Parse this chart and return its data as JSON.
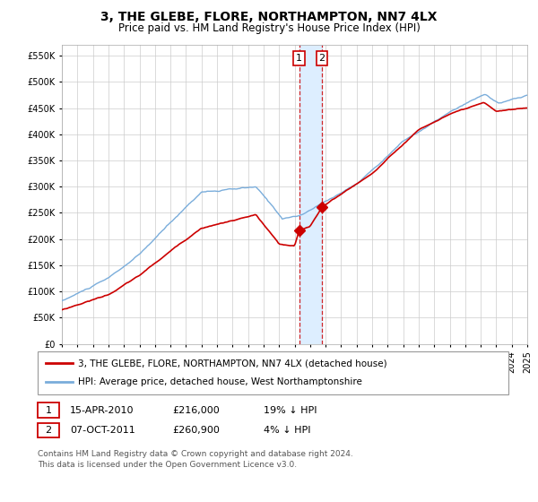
{
  "title": "3, THE GLEBE, FLORE, NORTHAMPTON, NN7 4LX",
  "subtitle": "Price paid vs. HM Land Registry's House Price Index (HPI)",
  "ylim": [
    0,
    570000
  ],
  "yticks": [
    0,
    50000,
    100000,
    150000,
    200000,
    250000,
    300000,
    350000,
    400000,
    450000,
    500000,
    550000
  ],
  "ytick_labels": [
    "£0",
    "£50K",
    "£100K",
    "£150K",
    "£200K",
    "£250K",
    "£300K",
    "£350K",
    "£400K",
    "£450K",
    "£500K",
    "£550K"
  ],
  "x_start_year": 1995,
  "x_end_year": 2025,
  "sale1_date": 2010.29,
  "sale1_price": 216000,
  "sale2_date": 2011.77,
  "sale2_price": 260900,
  "legend_red_label": "3, THE GLEBE, FLORE, NORTHAMPTON, NN7 4LX (detached house)",
  "legend_blue_label": "HPI: Average price, detached house, West Northamptonshire",
  "row1_num": "1",
  "row1_date": "15-APR-2010",
  "row1_price": "£216,000",
  "row1_hpi": "19% ↓ HPI",
  "row2_num": "2",
  "row2_date": "07-OCT-2011",
  "row2_price": "£260,900",
  "row2_hpi": "4% ↓ HPI",
  "footnote_line1": "Contains HM Land Registry data © Crown copyright and database right 2024.",
  "footnote_line2": "This data is licensed under the Open Government Licence v3.0.",
  "red_color": "#cc0000",
  "blue_color": "#7aaddb",
  "shade_color": "#ddeeff",
  "grid_color": "#cccccc",
  "background_color": "#ffffff"
}
